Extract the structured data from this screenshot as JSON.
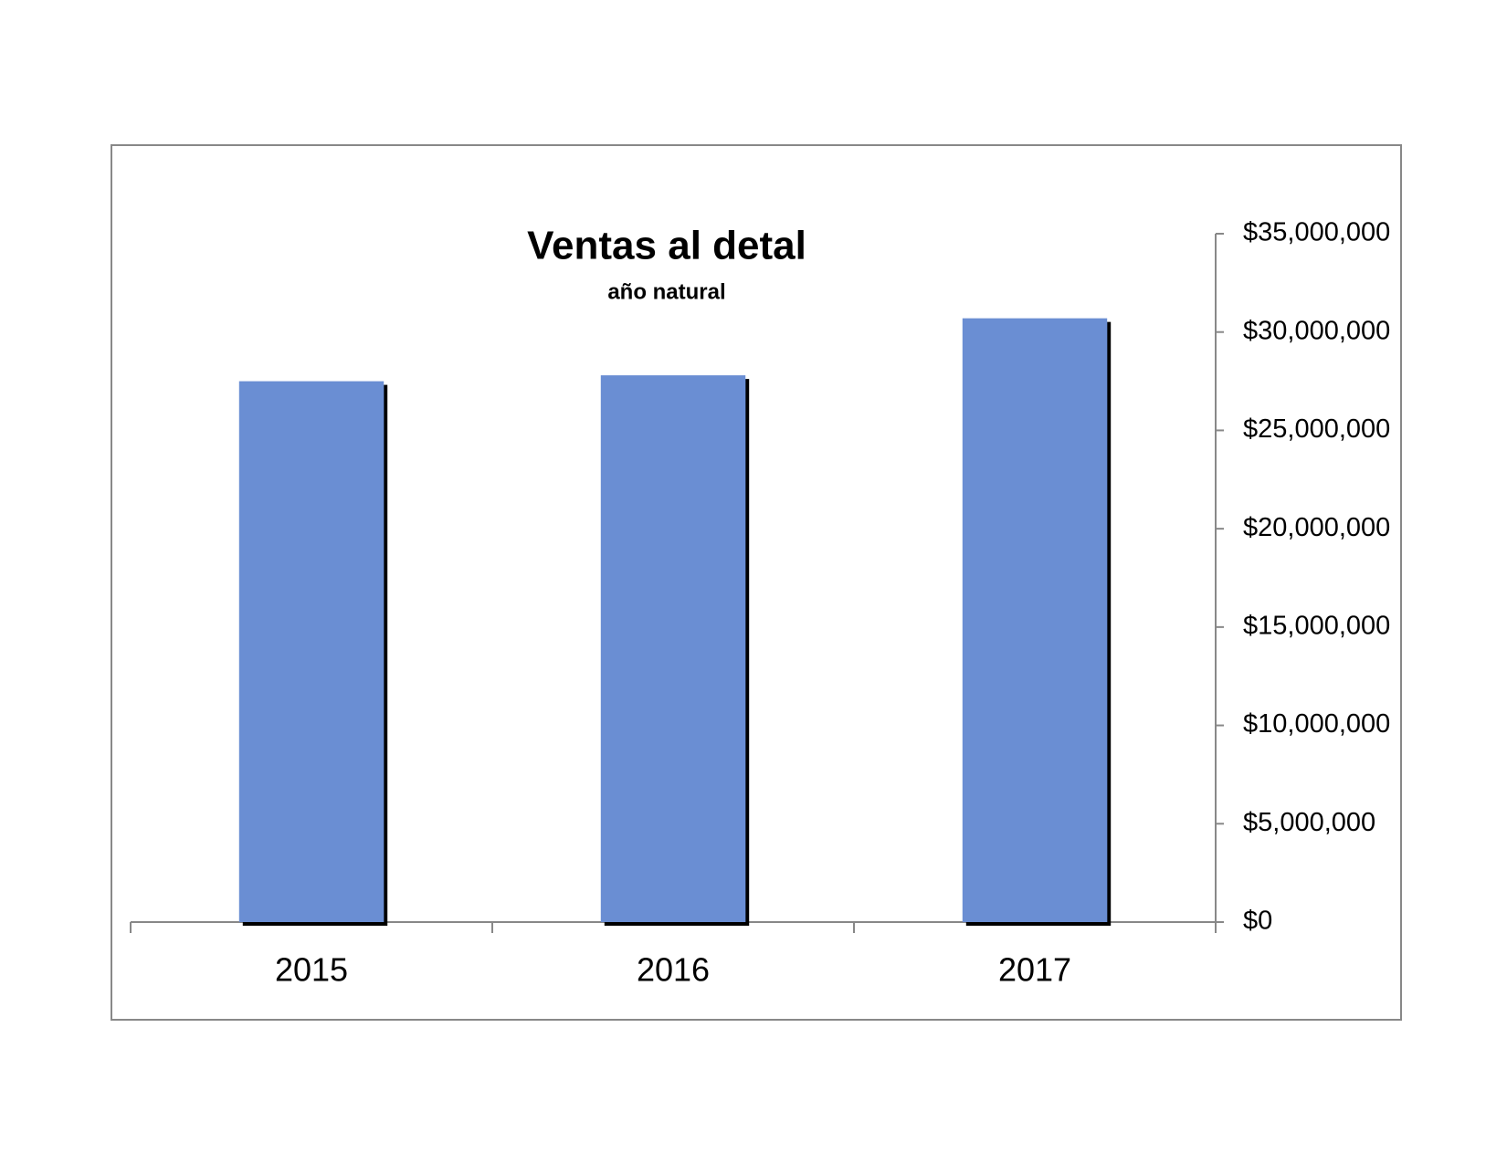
{
  "chart_data": {
    "type": "bar",
    "title": "Ventas al detal",
    "subtitle": "año natural",
    "categories": [
      "2015",
      "2016",
      "2017"
    ],
    "values": [
      27500000,
      27800000,
      30700000
    ],
    "color": "#6a8ed3",
    "ylim": [
      0,
      35000000
    ],
    "yticks": [
      {
        "value": 0,
        "label": "$0"
      },
      {
        "value": 5000000,
        "label": "$5,000,000"
      },
      {
        "value": 10000000,
        "label": "$10,000,000"
      },
      {
        "value": 15000000,
        "label": "$15,000,000"
      },
      {
        "value": 20000000,
        "label": "$20,000,000"
      },
      {
        "value": 25000000,
        "label": "$25,000,000"
      },
      {
        "value": 30000000,
        "label": "$30,000,000"
      },
      {
        "value": 35000000,
        "label": "$35,000,000"
      }
    ],
    "y_axis_side": "right"
  }
}
